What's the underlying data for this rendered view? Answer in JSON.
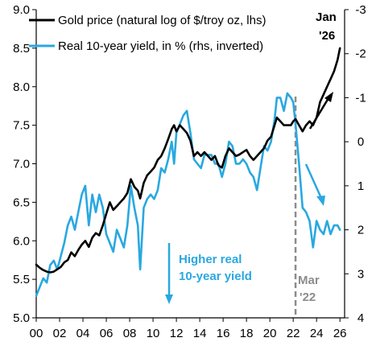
{
  "chart_data": {
    "type": "line",
    "title": "",
    "xlabel": "",
    "ylabel": "",
    "y2label": "",
    "x_ticks": [
      "00",
      "02",
      "04",
      "06",
      "08",
      "10",
      "12",
      "14",
      "16",
      "18",
      "20",
      "22",
      "24",
      "26"
    ],
    "xlim": [
      2000,
      2026.4
    ],
    "ylim": [
      5.0,
      9.0
    ],
    "y_ticks": [
      "5.0",
      "5.5",
      "6.0",
      "6.5",
      "7.0",
      "7.5",
      "8.0",
      "8.5",
      "9.0"
    ],
    "y2lim_inverted": [
      4,
      -3
    ],
    "y2_ticks": [
      "4",
      "3",
      "2",
      "1",
      "0",
      "-1",
      "-2",
      "-3"
    ],
    "grid": false,
    "legend_position": "top-left",
    "series": [
      {
        "name": "Gold price (natural log of $/troy oz, lhs)",
        "color": "#000000",
        "axis": "left",
        "x": [
          2000.0,
          2000.3,
          2000.6,
          2000.9,
          2001.2,
          2001.5,
          2001.8,
          2002.1,
          2002.4,
          2002.7,
          2003.0,
          2003.3,
          2003.6,
          2003.9,
          2004.2,
          2004.5,
          2004.8,
          2005.1,
          2005.4,
          2005.7,
          2006.0,
          2006.3,
          2006.6,
          2006.9,
          2007.2,
          2007.5,
          2007.8,
          2008.1,
          2008.4,
          2008.7,
          2008.9,
          2009.2,
          2009.5,
          2009.8,
          2010.1,
          2010.4,
          2010.7,
          2011.0,
          2011.3,
          2011.6,
          2011.8,
          2012.0,
          2012.3,
          2012.6,
          2012.9,
          2013.2,
          2013.5,
          2013.8,
          2014.1,
          2014.4,
          2014.7,
          2015.0,
          2015.3,
          2015.6,
          2015.9,
          2016.2,
          2016.5,
          2016.8,
          2017.1,
          2017.4,
          2017.7,
          2018.0,
          2018.3,
          2018.6,
          2018.9,
          2019.2,
          2019.5,
          2019.8,
          2020.1,
          2020.4,
          2020.6,
          2020.9,
          2021.2,
          2021.5,
          2021.8,
          2022.0,
          2022.2,
          2022.5,
          2022.8,
          2023.1,
          2023.4,
          2023.7,
          2024.0,
          2024.3,
          2024.6,
          2024.9,
          2025.2,
          2025.5,
          2025.8,
          2026.0
        ],
        "values": [
          5.69,
          5.65,
          5.62,
          5.6,
          5.59,
          5.6,
          5.63,
          5.66,
          5.72,
          5.75,
          5.85,
          5.8,
          5.88,
          5.95,
          6.0,
          5.92,
          6.04,
          6.1,
          6.07,
          6.2,
          6.35,
          6.5,
          6.4,
          6.45,
          6.5,
          6.55,
          6.62,
          6.8,
          6.7,
          6.65,
          6.55,
          6.75,
          6.85,
          6.9,
          6.95,
          7.05,
          7.1,
          7.2,
          7.32,
          7.45,
          7.5,
          7.42,
          7.5,
          7.45,
          7.4,
          7.3,
          7.1,
          7.15,
          7.1,
          7.15,
          7.1,
          7.05,
          7.1,
          6.98,
          6.95,
          7.1,
          7.2,
          7.15,
          7.1,
          7.12,
          7.15,
          7.18,
          7.1,
          7.05,
          7.1,
          7.15,
          7.2,
          7.3,
          7.35,
          7.5,
          7.6,
          7.55,
          7.5,
          7.5,
          7.5,
          7.55,
          7.58,
          7.5,
          7.42,
          7.5,
          7.55,
          7.5,
          7.6,
          7.8,
          7.9,
          8.0,
          8.1,
          8.2,
          8.35,
          8.5
        ]
      },
      {
        "name": "Real 10-year yield, in % (rhs, inverted)",
        "color": "#29a8e0",
        "axis": "right",
        "x": [
          2000.0,
          2000.3,
          2000.6,
          2000.9,
          2001.2,
          2001.5,
          2001.8,
          2002.1,
          2002.4,
          2002.7,
          2003.0,
          2003.3,
          2003.6,
          2003.9,
          2004.2,
          2004.5,
          2004.8,
          2005.1,
          2005.4,
          2005.7,
          2006.0,
          2006.3,
          2006.6,
          2006.9,
          2007.2,
          2007.5,
          2007.8,
          2008.1,
          2008.4,
          2008.7,
          2008.9,
          2009.2,
          2009.5,
          2009.8,
          2010.1,
          2010.4,
          2010.7,
          2011.0,
          2011.3,
          2011.6,
          2011.8,
          2012.0,
          2012.3,
          2012.6,
          2012.9,
          2013.2,
          2013.5,
          2013.8,
          2014.1,
          2014.4,
          2014.7,
          2015.0,
          2015.3,
          2015.6,
          2015.9,
          2016.2,
          2016.5,
          2016.8,
          2017.1,
          2017.4,
          2017.7,
          2018.0,
          2018.3,
          2018.6,
          2018.9,
          2019.2,
          2019.5,
          2019.8,
          2020.1,
          2020.4,
          2020.6,
          2020.9,
          2021.2,
          2021.5,
          2021.8,
          2022.0,
          2022.2,
          2022.5,
          2022.8,
          2023.1,
          2023.4,
          2023.7,
          2024.0,
          2024.3,
          2024.6,
          2024.9,
          2025.2,
          2025.5,
          2025.8,
          2026.0
        ],
        "values": [
          3.5,
          3.3,
          3.1,
          3.2,
          2.8,
          2.7,
          2.9,
          2.6,
          2.3,
          1.9,
          1.7,
          2.0,
          1.6,
          1.2,
          1.0,
          1.9,
          1.2,
          1.6,
          1.2,
          1.5,
          2.1,
          2.3,
          2.5,
          2.0,
          2.2,
          2.4,
          1.9,
          1.0,
          1.5,
          1.9,
          2.9,
          1.5,
          1.3,
          1.2,
          1.3,
          1.1,
          0.6,
          0.7,
          0.4,
          0.0,
          0.5,
          -0.2,
          -0.4,
          -0.6,
          -0.7,
          -0.2,
          0.4,
          0.5,
          0.6,
          0.3,
          0.3,
          0.3,
          0.5,
          0.5,
          0.8,
          0.5,
          0.0,
          0.1,
          0.5,
          0.5,
          0.4,
          0.5,
          0.7,
          0.8,
          1.1,
          0.6,
          0.1,
          0.2,
          0.0,
          -0.5,
          -1.0,
          -1.0,
          -0.7,
          -1.1,
          -1.0,
          -0.9,
          -0.4,
          0.5,
          1.5,
          1.6,
          1.8,
          2.4,
          1.8,
          2.0,
          2.1,
          1.8,
          2.1,
          1.9,
          1.9,
          2.0
        ]
      }
    ],
    "annotations": {
      "blue_note_line1": "Higher real",
      "blue_note_line2": "10-year yield",
      "grey_note_line1": "Mar",
      "grey_note_line2": "'22",
      "black_note_line1": "Jan",
      "black_note_line2": "'26",
      "vline_x": 2022.2
    }
  }
}
